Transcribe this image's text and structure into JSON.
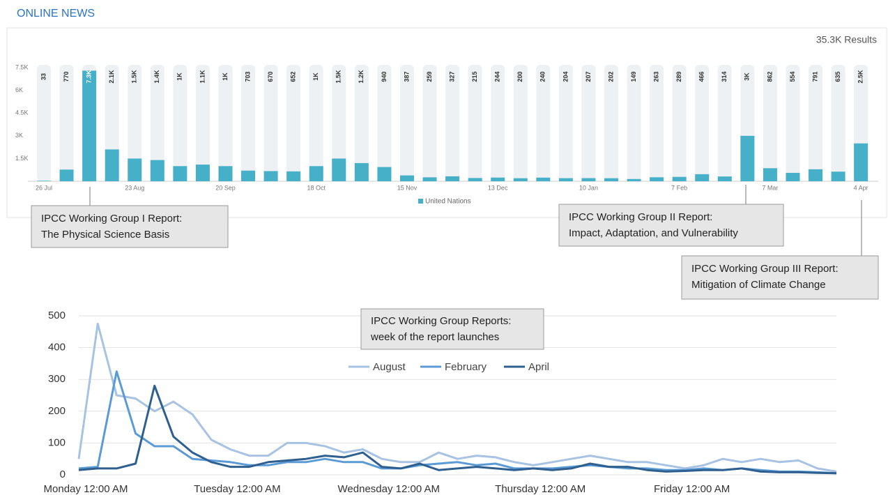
{
  "header": "ONLINE NEWS",
  "chart_data": [
    {
      "type": "bar",
      "results": "35.3K Results",
      "categories": [
        "26 Jul",
        null,
        null,
        null,
        "23 Aug",
        null,
        null,
        null,
        "20 Sep",
        null,
        null,
        null,
        "18 Oct",
        null,
        null,
        null,
        "15 Nov",
        null,
        null,
        null,
        "13 Dec",
        null,
        null,
        null,
        "10 Jan",
        null,
        null,
        null,
        "7 Feb",
        null,
        null,
        null,
        "7 Mar",
        null,
        null,
        null,
        "4 Apr"
      ],
      "series": [
        {
          "name": "United Nations",
          "color": "#45b0c8",
          "values": [
            33,
            770,
            7300,
            2100,
            1500,
            1400,
            1000,
            1100,
            1000,
            703,
            670,
            652,
            1000,
            1500,
            1200,
            940,
            387,
            259,
            327,
            215,
            244,
            200,
            240,
            204,
            207,
            202,
            149,
            263,
            289,
            466,
            314,
            3000,
            862,
            554,
            791,
            635,
            2500
          ],
          "value_labels": [
            "33",
            "770",
            "7.3K",
            "2.1K",
            "1.5K",
            "1.4K",
            "1K",
            "1.1K",
            "1K",
            "703",
            "670",
            "652",
            "1K",
            "1.5K",
            "1.2K",
            "940",
            "387",
            "259",
            "327",
            "215",
            "244",
            "200",
            "240",
            "204",
            "207",
            "202",
            "149",
            "263",
            "289",
            "466",
            "314",
            "3K",
            "862",
            "554",
            "791",
            "635",
            "2.5K"
          ]
        }
      ],
      "ylim": [
        0,
        7500
      ],
      "yticks": [
        {
          "value": 1500,
          "label": "1.5K"
        },
        {
          "value": 3000,
          "label": "3K"
        },
        {
          "value": 4500,
          "label": "4.5K"
        },
        {
          "value": 6000,
          "label": "6K"
        },
        {
          "value": 7500,
          "label": "7.5K"
        }
      ],
      "grid": false,
      "legend": "bottom",
      "annotations": [
        {
          "lines": [
            "IPCC Working Group I Report:",
            "The Physical Science Basis"
          ]
        },
        {
          "lines": [
            "IPCC Working Group II Report:",
            "Impact, Adaptation, and Vulnerability"
          ]
        },
        {
          "lines": [
            "IPCC Working Group III Report:",
            "Mitigation of Climate Change"
          ]
        }
      ]
    },
    {
      "type": "line",
      "title_lines": [
        "IPCC Working Group Reports:",
        "week of the report launches"
      ],
      "categories": [
        "Monday 12:00 AM",
        null,
        null,
        null,
        null,
        null,
        null,
        null,
        "Tuesday 12:00 AM",
        null,
        null,
        null,
        null,
        null,
        null,
        null,
        "Wednesday 12:00 AM",
        null,
        null,
        null,
        null,
        null,
        null,
        null,
        "Thursday 12:00 AM",
        null,
        null,
        null,
        null,
        null,
        null,
        null,
        "Friday 12:00 AM",
        null,
        null,
        null,
        null,
        null,
        null,
        null,
        null
      ],
      "series": [
        {
          "name": "August",
          "color": "#a7c2e3",
          "values": [
            50,
            475,
            250,
            240,
            200,
            230,
            190,
            110,
            80,
            60,
            60,
            100,
            100,
            90,
            70,
            80,
            50,
            40,
            40,
            70,
            50,
            60,
            55,
            40,
            30,
            40,
            50,
            60,
            50,
            40,
            40,
            30,
            20,
            30,
            50,
            40,
            50,
            40,
            45,
            20,
            10
          ]
        },
        {
          "name": "February",
          "color": "#5b9bd5",
          "values": [
            20,
            25,
            325,
            130,
            90,
            90,
            50,
            45,
            40,
            30,
            30,
            40,
            40,
            50,
            40,
            40,
            20,
            20,
            30,
            35,
            40,
            30,
            35,
            20,
            20,
            20,
            25,
            30,
            25,
            20,
            20,
            15,
            15,
            20,
            15,
            20,
            15,
            10,
            10,
            8,
            5
          ]
        },
        {
          "name": "April",
          "color": "#2f5f8f",
          "values": [
            15,
            20,
            20,
            35,
            280,
            120,
            70,
            40,
            25,
            25,
            40,
            45,
            50,
            60,
            55,
            70,
            25,
            20,
            35,
            15,
            20,
            25,
            20,
            15,
            20,
            15,
            20,
            35,
            25,
            25,
            15,
            10,
            12,
            15,
            15,
            20,
            10,
            8,
            8,
            6,
            5
          ]
        }
      ],
      "ylim": [
        0,
        500
      ],
      "yticks": [
        0,
        100,
        200,
        300,
        400,
        500
      ],
      "grid": true,
      "legend": "top"
    }
  ]
}
